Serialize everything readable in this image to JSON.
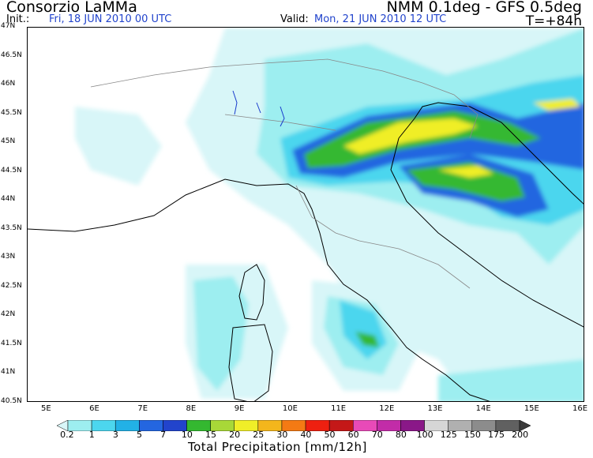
{
  "header": {
    "title_left": "Consorzio LaMMa",
    "init_label": "Init.:",
    "init_value": "Fri, 18 JUN 2010   00 UTC",
    "title_right": "NMM 0.1deg - GFS 0.5deg",
    "valid_label": "Valid:",
    "valid_value": "Mon, 21 JUN 2010   12 UTC",
    "lead_time": "T=+84h"
  },
  "map": {
    "lat_labels": [
      "47N",
      "46.5N",
      "46N",
      "45.5N",
      "45N",
      "44.5N",
      "44N",
      "43.5N",
      "43N",
      "42.5N",
      "42N",
      "41.5N",
      "41N",
      "40.5N"
    ],
    "lon_labels": [
      "5E",
      "6E",
      "7E",
      "8E",
      "9E",
      "10E",
      "11E",
      "12E",
      "13E",
      "14E",
      "15E",
      "16E"
    ],
    "coastline_color": "#000000",
    "border_color": "#888888",
    "lake_color": "#1a3ccc"
  },
  "legend": {
    "title": "Total Precipitation [mm/12h]",
    "labels": [
      "0.2",
      "1",
      "3",
      "5",
      "7",
      "10",
      "15",
      "20",
      "25",
      "30",
      "40",
      "50",
      "60",
      "70",
      "80",
      "100",
      "125",
      "150",
      "175",
      "200"
    ],
    "colors": [
      "#d8f6f8",
      "#9deef0",
      "#4cd6ee",
      "#22b1e6",
      "#2466e0",
      "#2244cc",
      "#34b830",
      "#a8d838",
      "#f0ee28",
      "#f4b61c",
      "#f47a14",
      "#ee2010",
      "#c41818",
      "#e84ab8",
      "#c22ca8",
      "#8a1888",
      "#d6d6d6",
      "#b0b0b0",
      "#8c8c8c",
      "#606060",
      "#3a3a3a"
    ]
  }
}
